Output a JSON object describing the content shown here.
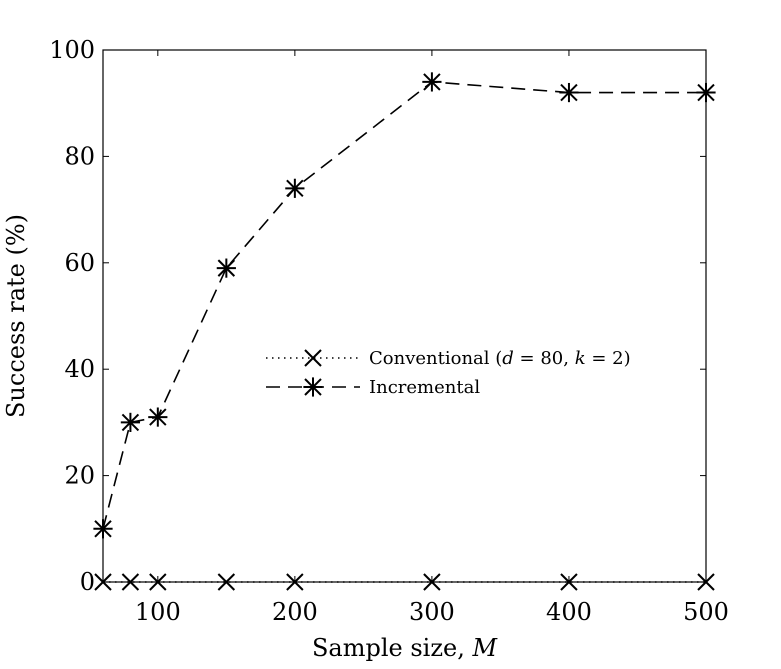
{
  "chart_data": {
    "type": "line",
    "xlabel": "Sample size, M",
    "xlabel_text": "Sample size, ",
    "xlabel_var": "M",
    "ylabel": "Success rate (%)",
    "xlim": [
      60,
      500
    ],
    "ylim": [
      0,
      100
    ],
    "xticks": [
      100,
      200,
      300,
      400,
      500
    ],
    "yticks": [
      0,
      20,
      40,
      60,
      80,
      100
    ],
    "grid": false,
    "legend_position": "center",
    "series": [
      {
        "name": "Conventional (d = 80, k = 2)",
        "line_style": "dotted",
        "marker": "x",
        "x": [
          60,
          80,
          100,
          150,
          200,
          300,
          400,
          500
        ],
        "y": [
          0,
          0,
          0,
          0,
          0,
          0,
          0,
          0
        ]
      },
      {
        "name": "Incremental",
        "line_style": "dashed",
        "marker": "asterisk",
        "x": [
          60,
          80,
          100,
          150,
          200,
          300,
          400,
          500
        ],
        "y": [
          10,
          30,
          31,
          59,
          74,
          94,
          92,
          92
        ]
      }
    ]
  }
}
